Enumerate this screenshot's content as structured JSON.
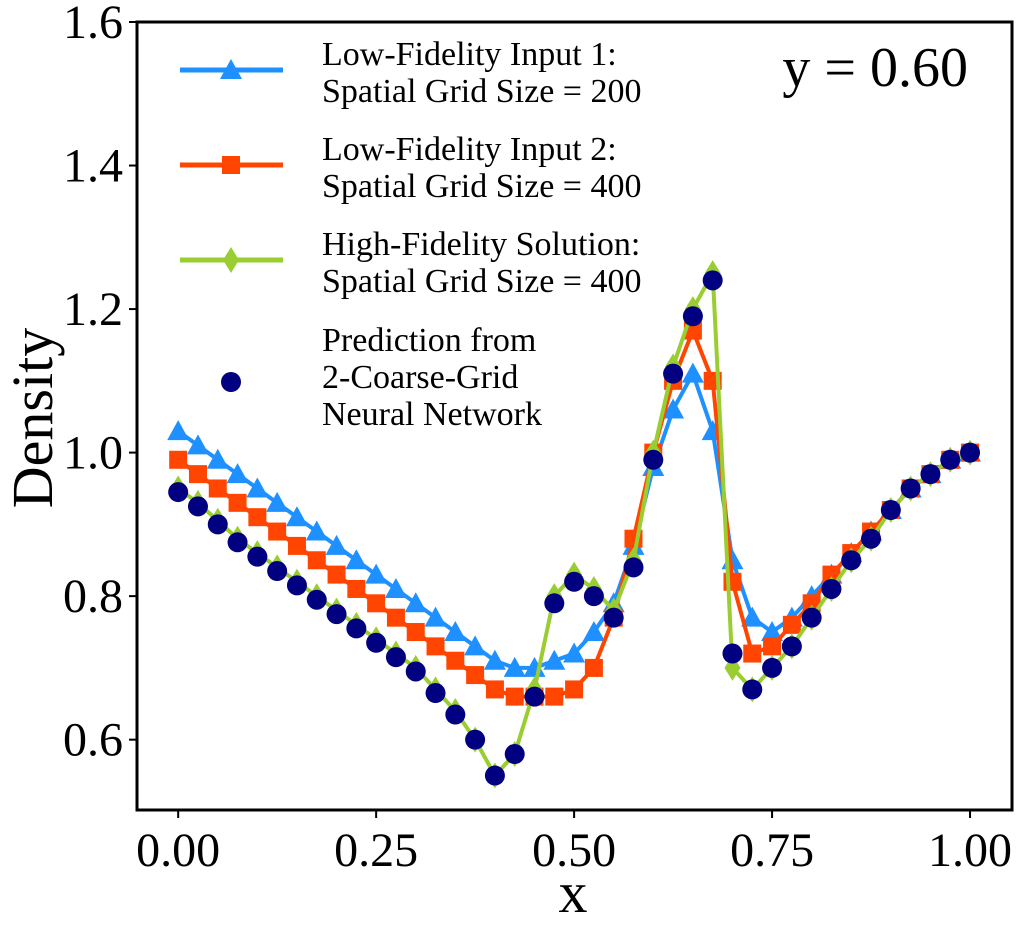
{
  "chart_data": {
    "type": "line",
    "x_label": "x",
    "y_label": "Density",
    "annotation": "y = 0.60",
    "x": [
      0,
      0.025,
      0.05,
      0.075,
      0.1,
      0.125,
      0.15,
      0.175,
      0.2,
      0.225,
      0.25,
      0.275,
      0.3,
      0.325,
      0.35,
      0.375,
      0.4,
      0.425,
      0.45,
      0.475,
      0.5,
      0.525,
      0.55,
      0.575,
      0.6,
      0.625,
      0.65,
      0.675,
      0.7,
      0.725,
      0.75,
      0.775,
      0.8,
      0.825,
      0.85,
      0.875,
      0.9,
      0.925,
      0.95,
      0.975,
      1.0
    ],
    "series": [
      {
        "name": "Low-Fidelity Input 1:\nSpatial Grid Size = 200",
        "color": "#1e90ff",
        "marker": "triangle",
        "line": true,
        "values": [
          1.03,
          1.01,
          0.99,
          0.97,
          0.95,
          0.93,
          0.91,
          0.89,
          0.87,
          0.85,
          0.83,
          0.81,
          0.79,
          0.77,
          0.75,
          0.73,
          0.71,
          0.7,
          0.7,
          0.71,
          0.72,
          0.75,
          0.79,
          0.87,
          0.98,
          1.06,
          1.11,
          1.03,
          0.85,
          0.77,
          0.75,
          0.77,
          0.8,
          0.83,
          0.86,
          0.89,
          0.92,
          0.95,
          0.97,
          0.99,
          1.0
        ]
      },
      {
        "name": "Low-Fidelity Input 2:\nSpatial Grid Size = 400",
        "color": "#ff4500",
        "marker": "square",
        "line": true,
        "values": [
          0.99,
          0.97,
          0.95,
          0.93,
          0.91,
          0.89,
          0.87,
          0.85,
          0.83,
          0.81,
          0.79,
          0.77,
          0.75,
          0.73,
          0.71,
          0.69,
          0.67,
          0.66,
          0.66,
          0.66,
          0.67,
          0.7,
          0.77,
          0.88,
          1.0,
          1.1,
          1.17,
          1.1,
          0.82,
          0.72,
          0.73,
          0.76,
          0.79,
          0.83,
          0.86,
          0.89,
          0.92,
          0.95,
          0.97,
          0.99,
          1.0
        ]
      },
      {
        "name": "High-Fidelity Solution:\nSpatial Grid Size = 400",
        "color": "#9acd32",
        "marker": "diamond",
        "line": true,
        "values": [
          0.95,
          0.93,
          0.905,
          0.88,
          0.86,
          0.84,
          0.82,
          0.8,
          0.78,
          0.76,
          0.74,
          0.72,
          0.7,
          0.67,
          0.64,
          0.6,
          0.55,
          0.58,
          0.67,
          0.8,
          0.83,
          0.81,
          0.78,
          0.85,
          1.0,
          1.12,
          1.2,
          1.25,
          0.7,
          0.67,
          0.7,
          0.73,
          0.77,
          0.81,
          0.85,
          0.88,
          0.92,
          0.95,
          0.97,
          0.99,
          1.0
        ]
      },
      {
        "name": "Prediction from\n2-Coarse-Grid\nNeural Network",
        "color": "#000080",
        "marker": "circle",
        "line": false,
        "values": [
          0.945,
          0.925,
          0.9,
          0.875,
          0.855,
          0.835,
          0.815,
          0.795,
          0.775,
          0.755,
          0.735,
          0.715,
          0.695,
          0.665,
          0.635,
          0.6,
          0.55,
          0.58,
          0.66,
          0.79,
          0.82,
          0.8,
          0.77,
          0.84,
          0.99,
          1.11,
          1.19,
          1.24,
          0.72,
          0.67,
          0.7,
          0.73,
          0.77,
          0.81,
          0.85,
          0.88,
          0.92,
          0.95,
          0.97,
          0.99,
          1.0
        ]
      }
    ],
    "xlim": [
      -0.052,
      1.053
    ],
    "ylim": [
      0.502,
      1.6
    ],
    "xticks": [
      {
        "value": 0,
        "label": "0.00"
      },
      0.25,
      {
        "value": 0.5,
        "label": "0.50"
      },
      0.75,
      {
        "value": 1,
        "label": "1.00"
      }
    ],
    "yticks": [
      0.6,
      0.8,
      {
        "value": 1,
        "label": "1.0"
      },
      1.2,
      1.4,
      1.6
    ],
    "legend": "upper left",
    "grid": false
  }
}
